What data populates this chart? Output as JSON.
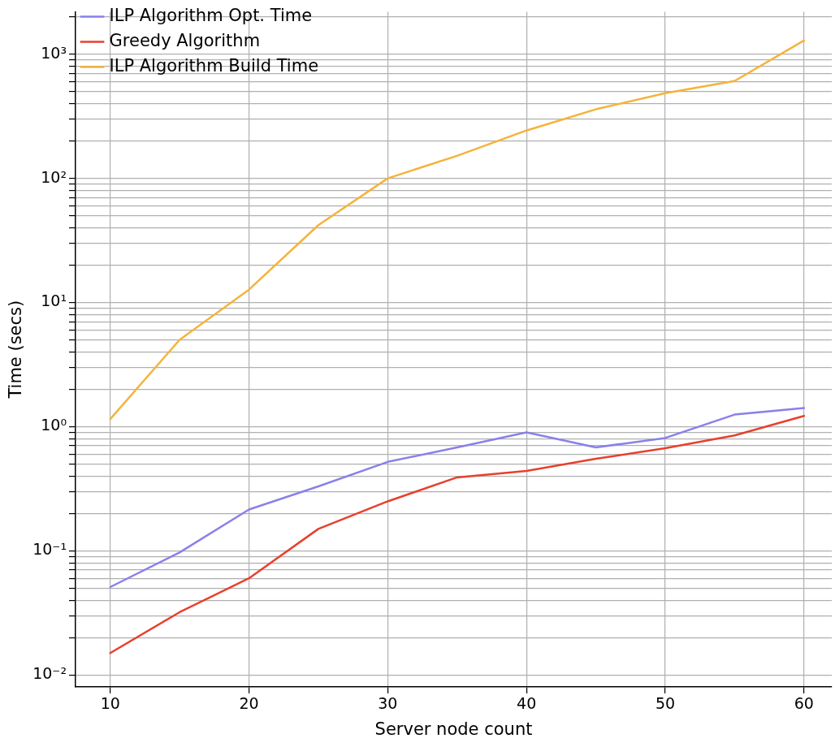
{
  "chart_data": {
    "type": "line",
    "xlabel": "Server node count",
    "ylabel": "Time (secs)",
    "log": "y",
    "grid": true,
    "legend": "top left",
    "marker": "none",
    "line_style": "solid",
    "xlim": [
      7.5,
      62
    ],
    "xticks": [
      10,
      20,
      30,
      40,
      50,
      60
    ],
    "ylim": [
      0.008,
      2200
    ],
    "yticks": [
      {
        "value": 0.01,
        "label": "10⁻²"
      },
      {
        "value": 0.02,
        "label": null
      },
      {
        "value": 0.03,
        "label": null
      },
      {
        "value": 0.04,
        "label": null
      },
      {
        "value": 0.05,
        "label": null
      },
      {
        "value": 0.06,
        "label": null
      },
      {
        "value": 0.07,
        "label": null
      },
      {
        "value": 0.08,
        "label": null
      },
      {
        "value": 0.09,
        "label": null
      },
      {
        "value": 0.1,
        "label": "10⁻¹"
      },
      {
        "value": 0.2,
        "label": null
      },
      {
        "value": 0.3,
        "label": null
      },
      {
        "value": 0.4,
        "label": null
      },
      {
        "value": 0.5,
        "label": null
      },
      {
        "value": 0.6,
        "label": null
      },
      {
        "value": 0.7,
        "label": null
      },
      {
        "value": 0.8,
        "label": null
      },
      {
        "value": 0.9,
        "label": null
      },
      {
        "value": 1,
        "label": "10⁰"
      },
      {
        "value": 2,
        "label": null
      },
      {
        "value": 3,
        "label": null
      },
      {
        "value": 4,
        "label": null
      },
      {
        "value": 5,
        "label": null
      },
      {
        "value": 6,
        "label": null
      },
      {
        "value": 7,
        "label": null
      },
      {
        "value": 8,
        "label": null
      },
      {
        "value": 9,
        "label": null
      },
      {
        "value": 10,
        "label": "10¹"
      },
      {
        "value": 20,
        "label": null
      },
      {
        "value": 30,
        "label": null
      },
      {
        "value": 40,
        "label": null
      },
      {
        "value": 50,
        "label": null
      },
      {
        "value": 60,
        "label": null
      },
      {
        "value": 70,
        "label": null
      },
      {
        "value": 80,
        "label": null
      },
      {
        "value": 90,
        "label": null
      },
      {
        "value": 100,
        "label": "10²"
      },
      {
        "value": 200,
        "label": null
      },
      {
        "value": 300,
        "label": null
      },
      {
        "value": 400,
        "label": null
      },
      {
        "value": 500,
        "label": null
      },
      {
        "value": 600,
        "label": null
      },
      {
        "value": 700,
        "label": null
      },
      {
        "value": 800,
        "label": null
      },
      {
        "value": 900,
        "label": null
      },
      {
        "value": 1000,
        "label": "10³"
      },
      {
        "value": 2000,
        "label": null
      }
    ],
    "x": [
      10,
      15,
      20,
      25,
      30,
      35,
      40,
      45,
      50,
      55,
      60
    ],
    "series": [
      {
        "name": "ILP Algorithm Opt. Time",
        "color": "#8a80ea",
        "values": [
          0.051,
          0.097,
          0.215,
          0.33,
          0.52,
          0.68,
          0.9,
          0.68,
          0.81,
          1.25,
          1.41
        ]
      },
      {
        "name": "Greedy Algorithm",
        "color": "#e8402c",
        "values": [
          0.015,
          0.032,
          0.06,
          0.15,
          0.25,
          0.39,
          0.44,
          0.55,
          0.67,
          0.85,
          1.22
        ]
      },
      {
        "name": "ILP Algorithm Build Time",
        "color": "#f5b33b",
        "values": [
          1.15,
          5.0,
          12.7,
          42,
          100,
          152,
          243,
          360,
          485,
          608,
          1290
        ]
      }
    ]
  }
}
